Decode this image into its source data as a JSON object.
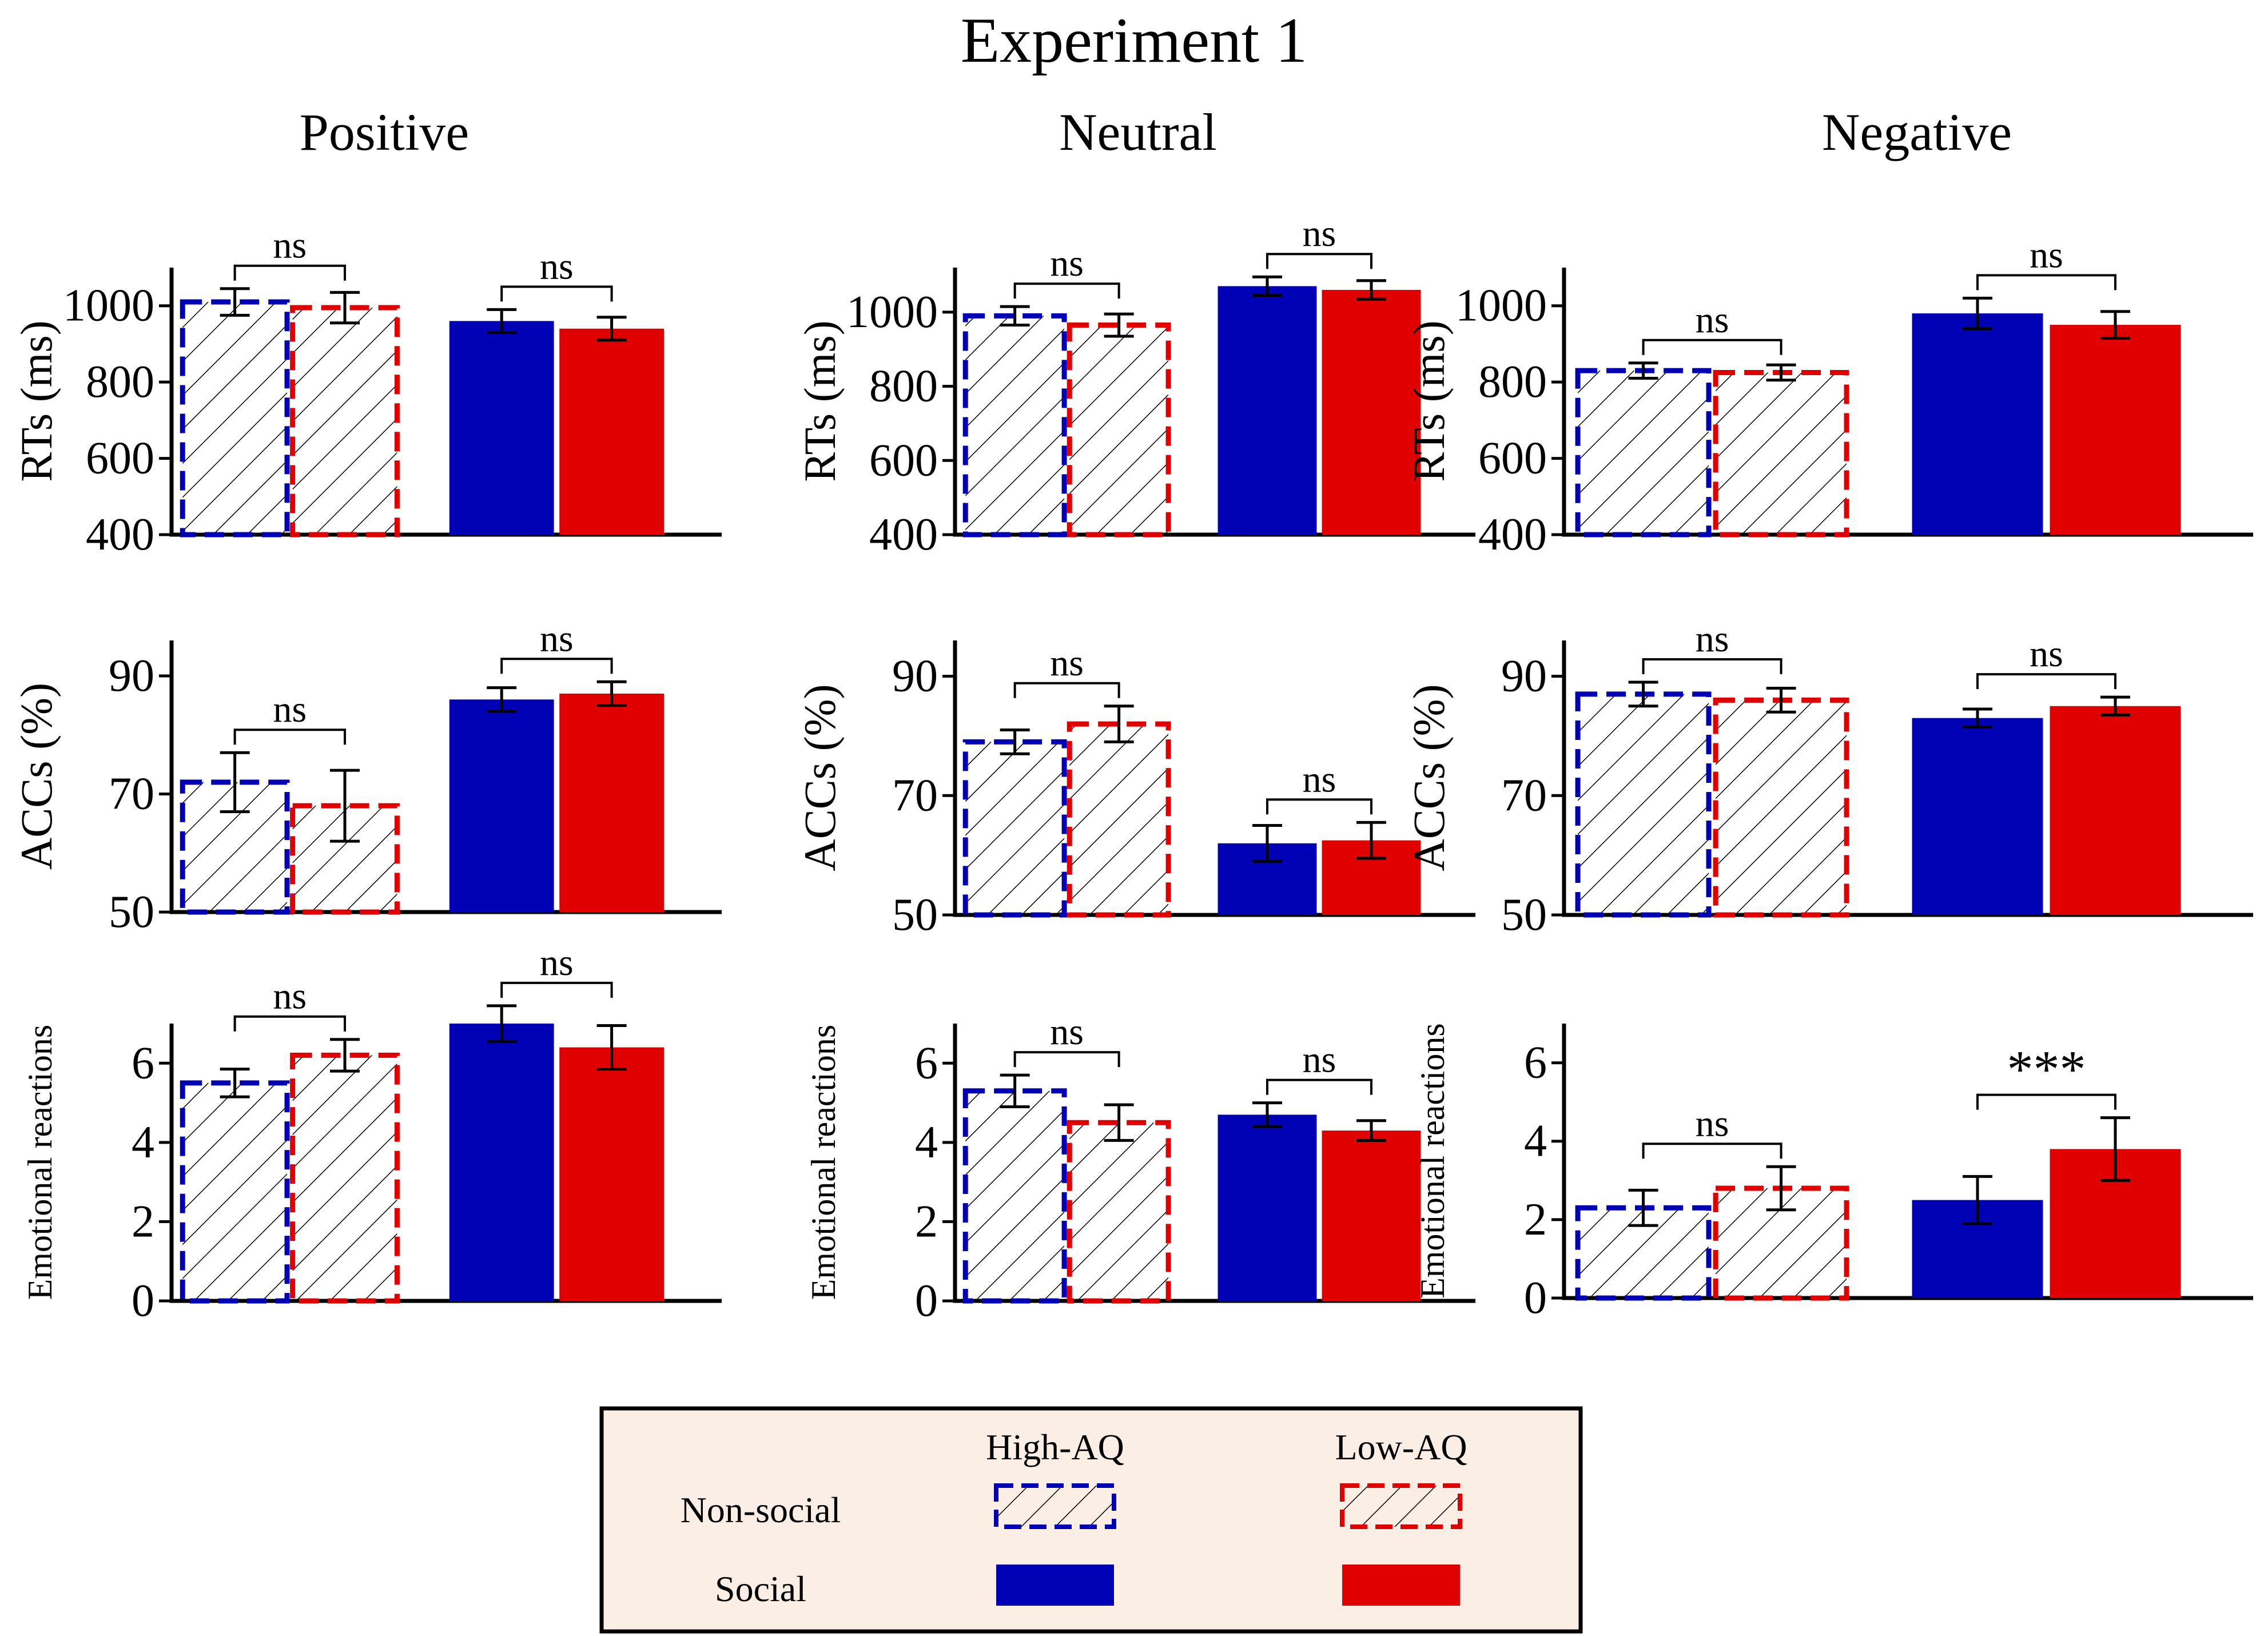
{
  "figure_title": "Experiment 1",
  "colors": {
    "high_aq": "#0000b4",
    "low_aq": "#e00000",
    "hatch": "#000000",
    "legend_bg": "#fbeee4"
  },
  "legend": {
    "col_high": "High-AQ",
    "col_low": "Low-AQ",
    "row_nonsocial": "Non-social",
    "row_social": "Social"
  },
  "chart_data": [
    {
      "type": "bar",
      "column": "Positive",
      "title": "Positive",
      "ylabel": "RTs (ms)",
      "ylim": [
        400,
        1100
      ],
      "yticks": [
        400,
        600,
        800,
        1000
      ],
      "categories": [
        "Non-social",
        "Social"
      ],
      "series": [
        {
          "name": "High-AQ",
          "values": [
            1010,
            960
          ],
          "errors": [
            35,
            30
          ]
        },
        {
          "name": "Low-AQ",
          "values": [
            995,
            940
          ],
          "errors": [
            40,
            30
          ]
        }
      ],
      "annotations": [
        "ns",
        "ns"
      ]
    },
    {
      "type": "bar",
      "column": "Neutral",
      "title": "Neutral",
      "ylabel": "RTs (ms)",
      "ylim": [
        400,
        1120
      ],
      "yticks": [
        400,
        600,
        800,
        1000
      ],
      "categories": [
        "Non-social",
        "Social"
      ],
      "series": [
        {
          "name": "High-AQ",
          "values": [
            990,
            1070
          ],
          "errors": [
            25,
            25
          ]
        },
        {
          "name": "Low-AQ",
          "values": [
            965,
            1060
          ],
          "errors": [
            30,
            25
          ]
        }
      ],
      "annotations": [
        "ns",
        "ns"
      ]
    },
    {
      "type": "bar",
      "column": "Negative",
      "title": "Negative",
      "ylabel": "RTs (ms)",
      "ylim": [
        400,
        1100
      ],
      "yticks": [
        400,
        600,
        800,
        1000
      ],
      "categories": [
        "Non-social",
        "Social"
      ],
      "series": [
        {
          "name": "High-AQ",
          "values": [
            830,
            980
          ],
          "errors": [
            20,
            40
          ]
        },
        {
          "name": "Low-AQ",
          "values": [
            825,
            950
          ],
          "errors": [
            20,
            35
          ]
        }
      ],
      "annotations": [
        "ns",
        "ns"
      ]
    },
    {
      "type": "bar",
      "column": "Positive",
      "title": "",
      "ylabel": "ACCs (%)",
      "ylim": [
        50,
        96
      ],
      "yticks": [
        50,
        70,
        90
      ],
      "categories": [
        "Non-social",
        "Social"
      ],
      "series": [
        {
          "name": "High-AQ",
          "values": [
            72,
            86
          ],
          "errors": [
            5,
            2
          ]
        },
        {
          "name": "Low-AQ",
          "values": [
            68,
            87
          ],
          "errors": [
            6,
            2
          ]
        }
      ],
      "annotations": [
        "ns",
        "ns"
      ]
    },
    {
      "type": "bar",
      "column": "Neutral",
      "title": "",
      "ylabel": "ACCs (%)",
      "ylim": [
        50,
        96
      ],
      "yticks": [
        50,
        70,
        90
      ],
      "categories": [
        "Non-social",
        "Social"
      ],
      "series": [
        {
          "name": "High-AQ",
          "values": [
            79,
            62
          ],
          "errors": [
            2,
            3
          ]
        },
        {
          "name": "Low-AQ",
          "values": [
            82,
            62.5
          ],
          "errors": [
            3,
            3
          ]
        }
      ],
      "annotations": [
        "ns",
        "ns"
      ]
    },
    {
      "type": "bar",
      "column": "Negative",
      "title": "",
      "ylabel": "ACCs (%)",
      "ylim": [
        50,
        96
      ],
      "yticks": [
        50,
        70,
        90
      ],
      "categories": [
        "Non-social",
        "Social"
      ],
      "series": [
        {
          "name": "High-AQ",
          "values": [
            87,
            83
          ],
          "errors": [
            2,
            1.5
          ]
        },
        {
          "name": "Low-AQ",
          "values": [
            86,
            85
          ],
          "errors": [
            2,
            1.5
          ]
        }
      ],
      "annotations": [
        "ns",
        "ns"
      ]
    },
    {
      "type": "bar",
      "column": "Positive",
      "title": "",
      "ylabel": "Emotional reactions",
      "ylim": [
        0,
        7
      ],
      "yticks": [
        0,
        2,
        4,
        6
      ],
      "categories": [
        "Non-social",
        "Social"
      ],
      "series": [
        {
          "name": "High-AQ",
          "values": [
            5.5,
            7.0
          ],
          "errors": [
            0.35,
            0.45
          ]
        },
        {
          "name": "Low-AQ",
          "values": [
            6.2,
            6.4
          ],
          "errors": [
            0.4,
            0.55
          ]
        }
      ],
      "annotations": [
        "ns",
        "ns"
      ]
    },
    {
      "type": "bar",
      "column": "Neutral",
      "title": "",
      "ylabel": "Emotional reactions",
      "ylim": [
        0,
        7
      ],
      "yticks": [
        0,
        2,
        4,
        6
      ],
      "categories": [
        "Non-social",
        "Social"
      ],
      "series": [
        {
          "name": "High-AQ",
          "values": [
            5.3,
            4.7
          ],
          "errors": [
            0.4,
            0.3
          ]
        },
        {
          "name": "Low-AQ",
          "values": [
            4.5,
            4.3
          ],
          "errors": [
            0.45,
            0.25
          ]
        }
      ],
      "annotations": [
        "ns",
        "ns"
      ]
    },
    {
      "type": "bar",
      "column": "Negative",
      "title": "",
      "ylabel": "Emotional reactions",
      "ylim": [
        0,
        7
      ],
      "yticks": [
        0,
        2,
        4,
        6
      ],
      "categories": [
        "Non-social",
        "Social"
      ],
      "series": [
        {
          "name": "High-AQ",
          "values": [
            2.3,
            2.5
          ],
          "errors": [
            0.45,
            0.6
          ]
        },
        {
          "name": "Low-AQ",
          "values": [
            2.8,
            3.8
          ],
          "errors": [
            0.55,
            0.8
          ]
        }
      ],
      "annotations": [
        "ns",
        "***"
      ]
    }
  ]
}
